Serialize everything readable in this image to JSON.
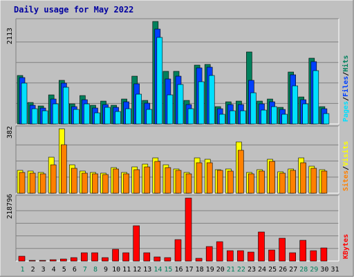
{
  "title": "Daily usage for May 2022",
  "side_labels": {
    "pages": "Pages",
    "files": "Files",
    "hits": "Hits",
    "sep": "/",
    "sites": "Sites",
    "visits": "Visits",
    "kbytes": "KBytes"
  },
  "colors": {
    "background": "#c0c0c0",
    "plot_bg": "#c0c0c0",
    "grid": "#808080",
    "hits": "#00805c",
    "files": "#0040ff",
    "pages": "#00e0ff",
    "visits": "#ffff00",
    "sites": "#ff8000",
    "kbytes": "#ff0000",
    "title": "#0000a0",
    "weekday": "#000000",
    "weekend": "#00805c",
    "sep": "#000000"
  },
  "chart_data": [
    {
      "type": "bar",
      "name": "hits-files-pages",
      "y_max_label": "2113",
      "ylim": [
        0,
        2113
      ],
      "x": [
        1,
        2,
        3,
        4,
        5,
        6,
        7,
        8,
        9,
        10,
        11,
        12,
        13,
        14,
        15,
        16,
        17,
        18,
        19,
        20,
        21,
        22,
        23,
        24,
        25,
        26,
        27,
        28,
        29,
        30,
        31
      ],
      "series": [
        {
          "name": "Hits",
          "values": [
            1000,
            440,
            370,
            600,
            900,
            420,
            580,
            380,
            470,
            380,
            510,
            980,
            480,
            2113,
            1080,
            1090,
            480,
            1220,
            1230,
            360,
            460,
            470,
            1490,
            470,
            510,
            340,
            1070,
            550,
            1350,
            360,
            0
          ]
        },
        {
          "name": "Files",
          "values": [
            960,
            380,
            330,
            520,
            840,
            360,
            500,
            330,
            400,
            340,
            450,
            830,
            430,
            1960,
            930,
            990,
            400,
            1150,
            1170,
            310,
            400,
            400,
            900,
            410,
            450,
            300,
            1010,
            500,
            1280,
            310,
            0
          ]
        },
        {
          "name": "Pages",
          "values": [
            840,
            320,
            270,
            420,
            760,
            300,
            420,
            230,
            340,
            250,
            320,
            620,
            300,
            1790,
            600,
            810,
            320,
            870,
            1000,
            200,
            270,
            270,
            640,
            290,
            360,
            200,
            780,
            420,
            1100,
            210,
            0
          ]
        }
      ]
    },
    {
      "type": "bar",
      "name": "visits-sites",
      "y_max_label": "382",
      "ylim": [
        0,
        382
      ],
      "x": [
        1,
        2,
        3,
        4,
        5,
        6,
        7,
        8,
        9,
        10,
        11,
        12,
        13,
        14,
        15,
        16,
        17,
        18,
        19,
        20,
        21,
        22,
        23,
        24,
        25,
        26,
        27,
        28,
        29,
        30,
        31
      ],
      "series": [
        {
          "name": "Visits",
          "values": [
            136,
            130,
            123,
            212,
            382,
            170,
            130,
            122,
            120,
            150,
            122,
            155,
            171,
            210,
            170,
            145,
            122,
            210,
            202,
            141,
            142,
            304,
            125,
            140,
            202,
            126,
            142,
            210,
            160,
            141,
            0
          ]
        },
        {
          "name": "Sites",
          "values": [
            123,
            120,
            114,
            167,
            286,
            146,
            120,
            115,
            110,
            144,
            116,
            141,
            156,
            188,
            150,
            135,
            114,
            180,
            182,
            135,
            133,
            256,
            117,
            133,
            190,
            121,
            136,
            180,
            146,
            132,
            0
          ]
        }
      ]
    },
    {
      "type": "bar",
      "name": "kbytes",
      "y_max_label": "218796",
      "ylim": [
        0,
        218796
      ],
      "x": [
        1,
        2,
        3,
        4,
        5,
        6,
        7,
        8,
        9,
        10,
        11,
        12,
        13,
        14,
        15,
        16,
        17,
        18,
        19,
        20,
        21,
        22,
        23,
        24,
        25,
        26,
        27,
        28,
        29,
        30,
        31
      ],
      "series": [
        {
          "name": "KBytes",
          "values": [
            17000,
            3000,
            3000,
            6000,
            8000,
            11000,
            28000,
            28000,
            12000,
            42000,
            30000,
            122000,
            30000,
            15000,
            12000,
            75000,
            218796,
            10000,
            50000,
            67000,
            35000,
            35000,
            32000,
            102000,
            38000,
            80000,
            30000,
            72000,
            37000,
            45000,
            0
          ]
        }
      ]
    }
  ],
  "days": [
    "1",
    "2",
    "3",
    "4",
    "5",
    "6",
    "7",
    "8",
    "9",
    "10",
    "11",
    "12",
    "13",
    "14",
    "15",
    "16",
    "17",
    "18",
    "19",
    "20",
    "21",
    "22",
    "23",
    "24",
    "25",
    "26",
    "27",
    "28",
    "29",
    "30",
    "31"
  ],
  "weekend_days": [
    "1",
    "7",
    "8",
    "14",
    "15",
    "21",
    "22",
    "28",
    "29"
  ]
}
